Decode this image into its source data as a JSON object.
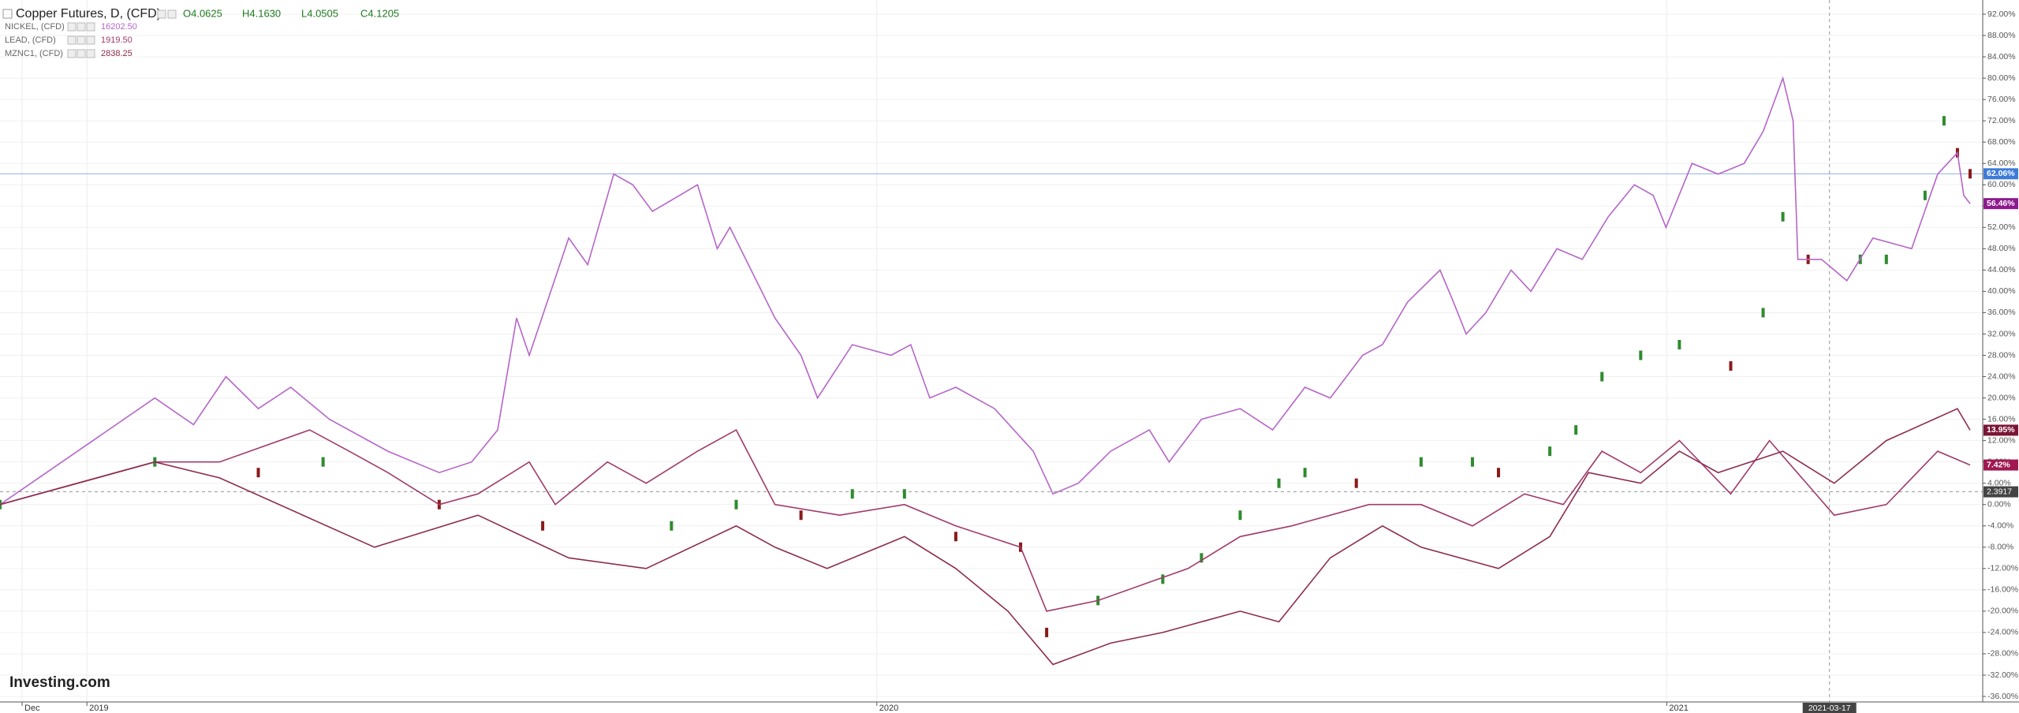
{
  "chart_data": {
    "type": "line",
    "title": "Copper Futures, D, (CFD)",
    "ohlc": [
      "O4.0625",
      "H4.1630",
      "L4.0505",
      "C4.1205"
    ],
    "watermark": "Investing.com",
    "xlim": [
      2018.89,
      2021.4
    ],
    "xticks": [
      {
        "value": 2018.918,
        "label": "Dec"
      },
      {
        "value": 2019,
        "label": "2019"
      },
      {
        "value": 2020,
        "label": "2020"
      },
      {
        "value": 2021,
        "label": "2021"
      }
    ],
    "ylim": [
      -36,
      92
    ],
    "yticks": [
      {
        "value": 92,
        "label": "92.00%"
      },
      {
        "value": 88,
        "label": "88.00%"
      },
      {
        "value": 84,
        "label": "84.00%"
      },
      {
        "value": 80,
        "label": "80.00%"
      },
      {
        "value": 76,
        "label": "76.00%"
      },
      {
        "value": 72,
        "label": "72.00%"
      },
      {
        "value": 68,
        "label": "68.00%"
      },
      {
        "value": 64,
        "label": "64.00%"
      },
      {
        "value": 60,
        "label": "60.00%"
      },
      {
        "value": 56,
        "label": "56.00%"
      },
      {
        "value": 52,
        "label": "52.00%"
      },
      {
        "value": 48,
        "label": "48.00%"
      },
      {
        "value": 44,
        "label": "44.00%"
      },
      {
        "value": 40,
        "label": "40.00%"
      },
      {
        "value": 36,
        "label": "36.00%"
      },
      {
        "value": 32,
        "label": "32.00%"
      },
      {
        "value": 28,
        "label": "28.00%"
      },
      {
        "value": 24,
        "label": "24.00%"
      },
      {
        "value": 20,
        "label": "20.00%"
      },
      {
        "value": 16,
        "label": "16.00%"
      },
      {
        "value": 12,
        "label": "12.00%"
      },
      {
        "value": 8,
        "label": "8.00%"
      },
      {
        "value": 4,
        "label": "4.00%"
      },
      {
        "value": 0,
        "label": "0.00%"
      },
      {
        "value": -4,
        "label": "-4.00%"
      },
      {
        "value": -8,
        "label": "-8.00%"
      },
      {
        "value": -12,
        "label": "-12.00%"
      },
      {
        "value": -16,
        "label": "-16.00%"
      },
      {
        "value": -20,
        "label": "-20.00%"
      },
      {
        "value": -24,
        "label": "-24.00%"
      },
      {
        "value": -28,
        "label": "-28.00%"
      },
      {
        "value": -32,
        "label": "-32.00%"
      },
      {
        "value": -36,
        "label": "-36.00%"
      }
    ],
    "grid": true,
    "crosshair": {
      "x": 2021.206,
      "x_label": "2021-03-17",
      "y": 2.3917,
      "y_label": "2.3917"
    },
    "series": [
      {
        "mark": "candle",
        "color": "#2e8b2e",
        "down_color": "#8b1a1a",
        "tag_color": "#3d7bd9",
        "x": [
          2018.89,
          2019.086,
          2019.217,
          2019.299,
          2019.446,
          2019.577,
          2019.74,
          2019.822,
          2019.904,
          2019.969,
          2020.035,
          2020.1,
          2020.182,
          2020.215,
          2020.28,
          2020.362,
          2020.411,
          2020.46,
          2020.509,
          2020.542,
          2020.607,
          2020.689,
          2020.754,
          2020.787,
          2020.852,
          2020.885,
          2020.918,
          2020.967,
          2021.016,
          2021.081,
          2021.122,
          2021.147,
          2021.179,
          2021.245,
          2021.278,
          2021.327,
          2021.351,
          2021.368,
          2021.384
        ],
        "values": [
          0,
          8,
          6,
          8,
          0,
          -4,
          -4,
          0,
          -2,
          2,
          2,
          -6,
          -8,
          -24,
          -18,
          -14,
          -10,
          -2,
          4,
          6,
          4,
          8,
          8,
          6,
          10,
          14,
          24,
          28,
          30,
          26,
          36,
          54,
          46,
          46,
          46,
          58,
          72,
          66,
          62.06
        ],
        "last_label": {
          "value": 62.06,
          "label": "62.06%"
        }
      },
      {
        "name": "NICKEL, (CFD)",
        "price": "16202.50",
        "mark": "line",
        "color": "#b565c9",
        "tag_color": "#8e1a8e",
        "x": [
          2018.89,
          2019.086,
          2019.135,
          2019.176,
          2019.217,
          2019.258,
          2019.307,
          2019.381,
          2019.446,
          2019.487,
          2019.52,
          2019.544,
          2019.56,
          2019.61,
          2019.634,
          2019.667,
          2019.691,
          2019.716,
          2019.773,
          2019.798,
          2019.814,
          2019.871,
          2019.904,
          2019.925,
          2019.969,
          2020.018,
          2020.043,
          2020.067,
          2020.1,
          2020.149,
          2020.198,
          2020.223,
          2020.255,
          2020.296,
          2020.345,
          2020.37,
          2020.411,
          2020.46,
          2020.501,
          2020.542,
          2020.574,
          2020.615,
          2020.64,
          2020.672,
          2020.713,
          2020.73,
          2020.746,
          2020.771,
          2020.803,
          2020.828,
          2020.861,
          2020.893,
          2020.926,
          2020.959,
          2020.983,
          2020.999,
          2021.032,
          2021.065,
          2021.098,
          2021.122,
          2021.147,
          2021.16,
          2021.166,
          2021.196,
          2021.228,
          2021.261,
          2021.31,
          2021.343,
          2021.368,
          2021.376,
          2021.384
        ],
        "values": [
          0,
          20,
          15,
          24,
          18,
          22,
          16,
          10,
          6,
          8,
          14,
          35,
          28,
          50,
          45,
          62,
          60,
          55,
          60,
          48,
          52,
          35,
          28,
          20,
          30,
          28,
          30,
          20,
          22,
          18,
          10,
          2,
          4,
          10,
          14,
          8,
          16,
          18,
          14,
          22,
          20,
          28,
          30,
          38,
          44,
          38,
          32,
          36,
          44,
          40,
          48,
          46,
          54,
          60,
          58,
          52,
          64,
          62,
          64,
          70,
          80,
          72,
          46,
          46,
          42,
          50,
          48,
          62,
          66,
          58,
          56.46
        ],
        "last_label": {
          "value": 56.46,
          "label": "56.46%"
        }
      },
      {
        "name": "LEAD, (CFD)",
        "price": "1919.50",
        "mark": "line",
        "color": "#a03a6b",
        "tag_color": "#a01850",
        "x": [
          2018.89,
          2019.086,
          2019.168,
          2019.282,
          2019.332,
          2019.381,
          2019.446,
          2019.495,
          2019.56,
          2019.593,
          2019.659,
          2019.708,
          2019.773,
          2019.822,
          2019.871,
          2019.953,
          2020.035,
          2020.1,
          2020.182,
          2020.215,
          2020.28,
          2020.394,
          2020.46,
          2020.525,
          2020.623,
          2020.689,
          2020.754,
          2020.82,
          2020.869,
          2020.918,
          2020.967,
          2021.016,
          2021.081,
          2021.13,
          2021.212,
          2021.278,
          2021.343,
          2021.384
        ],
        "values": [
          0,
          8,
          8,
          14,
          10,
          6,
          0,
          2,
          8,
          0,
          8,
          4,
          10,
          14,
          0,
          -2,
          0,
          -4,
          -8,
          -20,
          -18,
          -12,
          -6,
          -4,
          0,
          0,
          -4,
          2,
          0,
          10,
          6,
          12,
          2,
          12,
          -2,
          0,
          10,
          7.42
        ],
        "last_label": {
          "value": 7.42,
          "label": "7.42%"
        }
      },
      {
        "name": "MZNC1, (CFD)",
        "price": "2838.25",
        "mark": "line",
        "color": "#8c2b4f",
        "tag_color": "#7a1536",
        "x": [
          2018.89,
          2019.086,
          2019.168,
          2019.364,
          2019.495,
          2019.61,
          2019.708,
          2019.822,
          2019.871,
          2019.937,
          2020.035,
          2020.1,
          2020.166,
          2020.223,
          2020.296,
          2020.362,
          2020.46,
          2020.509,
          2020.574,
          2020.64,
          2020.689,
          2020.787,
          2020.852,
          2020.901,
          2020.967,
          2021.016,
          2021.065,
          2021.147,
          2021.212,
          2021.278,
          2021.368,
          2021.384
        ],
        "values": [
          0,
          8,
          5,
          -8,
          -2,
          -10,
          -12,
          -4,
          -8,
          -12,
          -6,
          -12,
          -20,
          -30,
          -26,
          -24,
          -20,
          -22,
          -10,
          -4,
          -8,
          -12,
          -6,
          6,
          4,
          10,
          6,
          10,
          4,
          12,
          18,
          13.95
        ],
        "last_label": {
          "value": 13.95,
          "label": "13.95%"
        }
      }
    ]
  }
}
